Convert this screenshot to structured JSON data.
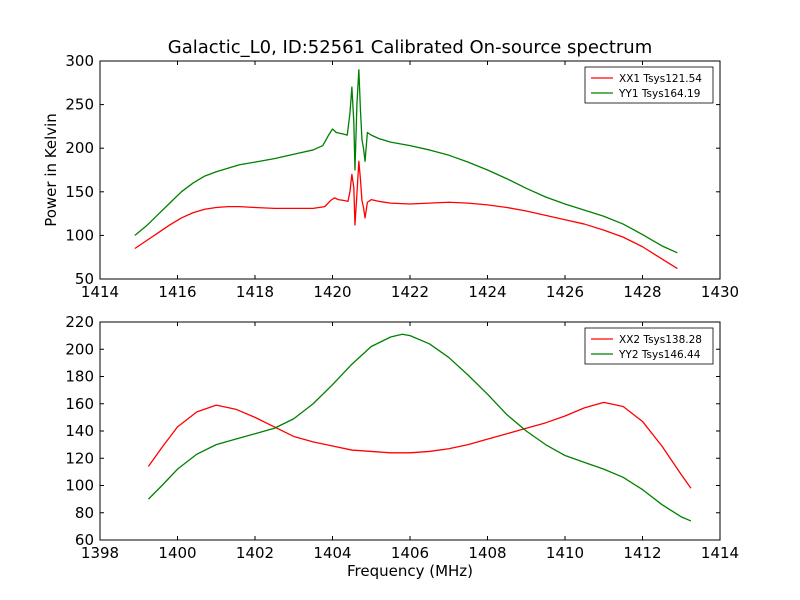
{
  "figure": {
    "title": "Galactic_L0, ID:52561 Calibrated On-source spectrum"
  },
  "chart_data": [
    {
      "type": "line",
      "title": "Galactic_L0, ID:52561 Calibrated On-source spectrum",
      "xlabel": "",
      "ylabel": "Power in Kelvin",
      "xlim": [
        1414,
        1430
      ],
      "ylim": [
        50,
        300
      ],
      "xticks": [
        1414,
        1416,
        1418,
        1420,
        1422,
        1424,
        1426,
        1428,
        1430
      ],
      "yticks": [
        50,
        100,
        150,
        200,
        250,
        300
      ],
      "grid": false,
      "legend": "top-right",
      "series": [
        {
          "name": "XX1 Tsys121.54",
          "color": "#ff0000",
          "points": [
            [
              1414.9,
              85
            ],
            [
              1415.2,
              94
            ],
            [
              1415.5,
              103
            ],
            [
              1415.8,
              112
            ],
            [
              1416.1,
              120
            ],
            [
              1416.4,
              126
            ],
            [
              1416.7,
              130
            ],
            [
              1417.0,
              132
            ],
            [
              1417.3,
              133
            ],
            [
              1417.6,
              133
            ],
            [
              1418.0,
              132
            ],
            [
              1418.5,
              131
            ],
            [
              1419.0,
              131
            ],
            [
              1419.5,
              131
            ],
            [
              1419.8,
              133
            ],
            [
              1419.95,
              140
            ],
            [
              1420.05,
              143
            ],
            [
              1420.15,
              141
            ],
            [
              1420.3,
              140
            ],
            [
              1420.4,
              139
            ],
            [
              1420.45,
              150
            ],
            [
              1420.5,
              170
            ],
            [
              1420.55,
              155
            ],
            [
              1420.58,
              112
            ],
            [
              1420.62,
              140
            ],
            [
              1420.68,
              185
            ],
            [
              1420.72,
              165
            ],
            [
              1420.76,
              140
            ],
            [
              1420.8,
              132
            ],
            [
              1420.84,
              120
            ],
            [
              1420.9,
              138
            ],
            [
              1421.0,
              141
            ],
            [
              1421.2,
              139
            ],
            [
              1421.5,
              137
            ],
            [
              1422.0,
              136
            ],
            [
              1422.5,
              137
            ],
            [
              1423.0,
              138
            ],
            [
              1423.5,
              137
            ],
            [
              1424.0,
              135
            ],
            [
              1424.5,
              132
            ],
            [
              1425.0,
              128
            ],
            [
              1425.5,
              123
            ],
            [
              1426.0,
              118
            ],
            [
              1426.5,
              113
            ],
            [
              1427.0,
              106
            ],
            [
              1427.5,
              98
            ],
            [
              1428.0,
              87
            ],
            [
              1428.5,
              73
            ],
            [
              1428.9,
              62
            ]
          ]
        },
        {
          "name": "YY1 Tsys164.19",
          "color": "#008000",
          "points": [
            [
              1414.9,
              100
            ],
            [
              1415.2,
              111
            ],
            [
              1415.5,
              124
            ],
            [
              1415.8,
              137
            ],
            [
              1416.1,
              150
            ],
            [
              1416.4,
              160
            ],
            [
              1416.7,
              168
            ],
            [
              1417.0,
              173
            ],
            [
              1417.3,
              177
            ],
            [
              1417.6,
              181
            ],
            [
              1418.0,
              184
            ],
            [
              1418.5,
              188
            ],
            [
              1419.0,
              193
            ],
            [
              1419.5,
              198
            ],
            [
              1419.75,
              203
            ],
            [
              1419.9,
              215
            ],
            [
              1420.0,
              222
            ],
            [
              1420.1,
              218
            ],
            [
              1420.3,
              216
            ],
            [
              1420.38,
              215
            ],
            [
              1420.45,
              240
            ],
            [
              1420.5,
              270
            ],
            [
              1420.55,
              230
            ],
            [
              1420.58,
              175
            ],
            [
              1420.63,
              250
            ],
            [
              1420.68,
              290
            ],
            [
              1420.72,
              245
            ],
            [
              1420.76,
              210
            ],
            [
              1420.8,
              200
            ],
            [
              1420.84,
              185
            ],
            [
              1420.9,
              218
            ],
            [
              1421.0,
              215
            ],
            [
              1421.2,
              211
            ],
            [
              1421.5,
              207
            ],
            [
              1422.0,
              203
            ],
            [
              1422.5,
              198
            ],
            [
              1423.0,
              192
            ],
            [
              1423.5,
              184
            ],
            [
              1424.0,
              175
            ],
            [
              1424.5,
              165
            ],
            [
              1425.0,
              154
            ],
            [
              1425.5,
              144
            ],
            [
              1426.0,
              136
            ],
            [
              1426.5,
              129
            ],
            [
              1427.0,
              122
            ],
            [
              1427.5,
              113
            ],
            [
              1428.0,
              101
            ],
            [
              1428.5,
              88
            ],
            [
              1428.9,
              80
            ]
          ]
        }
      ]
    },
    {
      "type": "line",
      "title": "",
      "xlabel": "Frequency (MHz)",
      "ylabel": "",
      "xlim": [
        1398,
        1414
      ],
      "ylim": [
        60,
        220
      ],
      "xticks": [
        1398,
        1400,
        1402,
        1404,
        1406,
        1408,
        1410,
        1412,
        1414
      ],
      "yticks": [
        60,
        80,
        100,
        120,
        140,
        160,
        180,
        200,
        220
      ],
      "grid": false,
      "legend": "top-right",
      "series": [
        {
          "name": "XX2 Tsys138.28",
          "color": "#ff0000",
          "points": [
            [
              1399.25,
              114
            ],
            [
              1399.6,
              128
            ],
            [
              1400.0,
              143
            ],
            [
              1400.5,
              154
            ],
            [
              1401.0,
              159
            ],
            [
              1401.5,
              156
            ],
            [
              1402.0,
              150
            ],
            [
              1402.5,
              143
            ],
            [
              1403.0,
              136
            ],
            [
              1403.5,
              132
            ],
            [
              1404.0,
              129
            ],
            [
              1404.5,
              126
            ],
            [
              1405.0,
              125
            ],
            [
              1405.5,
              124
            ],
            [
              1406.0,
              124
            ],
            [
              1406.5,
              125
            ],
            [
              1407.0,
              127
            ],
            [
              1407.5,
              130
            ],
            [
              1408.0,
              134
            ],
            [
              1408.5,
              138
            ],
            [
              1409.0,
              142
            ],
            [
              1409.5,
              146
            ],
            [
              1410.0,
              151
            ],
            [
              1410.5,
              157
            ],
            [
              1411.0,
              161
            ],
            [
              1411.5,
              158
            ],
            [
              1412.0,
              147
            ],
            [
              1412.5,
              129
            ],
            [
              1413.0,
              108
            ],
            [
              1413.25,
              98
            ]
          ]
        },
        {
          "name": "YY2 Tsys146.44",
          "color": "#008000",
          "points": [
            [
              1399.25,
              90
            ],
            [
              1399.6,
              100
            ],
            [
              1400.0,
              112
            ],
            [
              1400.5,
              123
            ],
            [
              1401.0,
              130
            ],
            [
              1401.5,
              134
            ],
            [
              1402.0,
              138
            ],
            [
              1402.5,
              142
            ],
            [
              1403.0,
              149
            ],
            [
              1403.5,
              160
            ],
            [
              1404.0,
              174
            ],
            [
              1404.5,
              189
            ],
            [
              1405.0,
              202
            ],
            [
              1405.5,
              209
            ],
            [
              1405.8,
              211
            ],
            [
              1406.0,
              210
            ],
            [
              1406.5,
              204
            ],
            [
              1407.0,
              194
            ],
            [
              1407.5,
              181
            ],
            [
              1408.0,
              167
            ],
            [
              1408.5,
              152
            ],
            [
              1409.0,
              140
            ],
            [
              1409.5,
              130
            ],
            [
              1410.0,
              122
            ],
            [
              1410.5,
              117
            ],
            [
              1411.0,
              112
            ],
            [
              1411.5,
              106
            ],
            [
              1412.0,
              97
            ],
            [
              1412.5,
              86
            ],
            [
              1413.0,
              77
            ],
            [
              1413.25,
              74
            ]
          ]
        }
      ]
    }
  ]
}
